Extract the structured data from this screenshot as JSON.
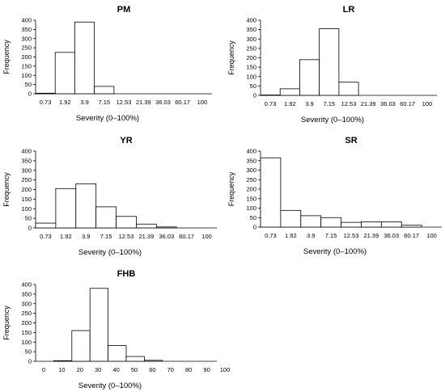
{
  "chart_data": [
    {
      "type": "bar",
      "title": "PM",
      "categories": [
        "0.73",
        "1.92",
        "3.9",
        "7.15",
        "12.53",
        "21.39",
        "36.03",
        "60.17",
        "100"
      ],
      "values": [
        3,
        225,
        390,
        40,
        0,
        0,
        0,
        0,
        0
      ],
      "xlabel": "Severity (0–100%)",
      "ylabel": "Frequency",
      "ylim": [
        0,
        400
      ],
      "yticks": [
        "0",
        "50",
        "100",
        "150",
        "200",
        "250",
        "300",
        "350",
        "400"
      ],
      "grid": false
    },
    {
      "type": "bar",
      "title": "LR",
      "categories": [
        "0.73",
        "1.92",
        "3.9",
        "7.15",
        "12.53",
        "21.39",
        "36.03",
        "60.17",
        "100"
      ],
      "values": [
        2,
        35,
        190,
        355,
        70,
        0,
        0,
        0,
        0
      ],
      "xlabel": "Severity (0–100%)",
      "ylabel": "Frequency",
      "ylim": [
        0,
        400
      ],
      "yticks": [
        "0",
        "50",
        "100",
        "150",
        "200",
        "250",
        "300",
        "350",
        "400"
      ],
      "grid": false
    },
    {
      "type": "bar",
      "title": "YR",
      "categories": [
        "0.73",
        "1.92",
        "3.9",
        "7.15",
        "12.53",
        "21.39",
        "36.03",
        "60.17",
        "100"
      ],
      "values": [
        25,
        205,
        230,
        110,
        60,
        20,
        5,
        0,
        0
      ],
      "xlabel": "Severity (0–100%)",
      "ylabel": "Frequency",
      "ylim": [
        0,
        400
      ],
      "yticks": [
        "0",
        "50",
        "100",
        "150",
        "200",
        "250",
        "300",
        "350",
        "400"
      ],
      "grid": false
    },
    {
      "type": "bar",
      "title": "SR",
      "categories": [
        "0.73",
        "1.92",
        "3.9",
        "7.15",
        "12.53",
        "21.39",
        "36.03",
        "60.17",
        "100"
      ],
      "values": [
        365,
        88,
        60,
        50,
        25,
        28,
        28,
        10,
        0
      ],
      "xlabel": "Severity (0–100%)",
      "ylabel": "Frequency",
      "ylim": [
        0,
        400
      ],
      "yticks": [
        "0",
        "50",
        "100",
        "150",
        "200",
        "250",
        "300",
        "350",
        "400"
      ],
      "grid": false
    },
    {
      "type": "bar",
      "title": "FHB",
      "categories": [
        "0",
        "10",
        "20",
        "30",
        "40",
        "50",
        "60",
        "70",
        "80",
        "90",
        "100"
      ],
      "values": [
        0,
        3,
        160,
        380,
        82,
        25,
        5,
        0,
        0,
        0,
        0
      ],
      "xlabel": "Severity (0–100%)",
      "ylabel": "Frequency",
      "ylim": [
        0,
        400
      ],
      "yticks": [
        "0",
        "50",
        "100",
        "150",
        "200",
        "250",
        "300",
        "350",
        "400"
      ],
      "grid": false
    }
  ]
}
